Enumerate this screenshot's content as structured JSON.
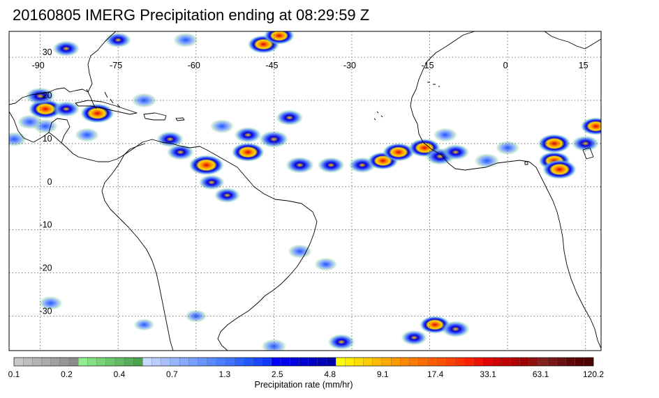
{
  "title": "20160805 IMERG Precipitation ending at 08:29:59 Z",
  "map": {
    "lon_range": [
      -96,
      18
    ],
    "lat_range": [
      -38,
      36
    ],
    "lon_ticks": [
      {
        "v": -90,
        "label": "-90"
      },
      {
        "v": -75,
        "label": "-75"
      },
      {
        "v": -60,
        "label": "-60"
      },
      {
        "v": -45,
        "label": "-45"
      },
      {
        "v": -30,
        "label": "-30"
      },
      {
        "v": -15,
        "label": "-15"
      },
      {
        "v": 0,
        "label": "0"
      },
      {
        "v": 15,
        "label": "15"
      }
    ],
    "lat_ticks": [
      {
        "v": 30,
        "label": "30"
      },
      {
        "v": 20,
        "label": "20"
      },
      {
        "v": 10,
        "label": "10"
      },
      {
        "v": 0,
        "label": "0"
      },
      {
        "v": -10,
        "label": "-10"
      },
      {
        "v": -20,
        "label": "-20"
      },
      {
        "v": -30,
        "label": "-30"
      }
    ],
    "gridline_style": "dotted",
    "coastline_color": "#000000"
  },
  "colorbar": {
    "title": "Precipitation rate (mm/hr)",
    "labels": [
      "0.1",
      "0.2",
      "0.4",
      "0.7",
      "1.3",
      "2.5",
      "4.8",
      "9.1",
      "17.4",
      "33.1",
      "63.1",
      "120.2"
    ],
    "colors": [
      "#c8c8c8",
      "#bebebe",
      "#b4b4b4",
      "#aaaaaa",
      "#a0a0a0",
      "#969696",
      "#8c8c8c",
      "#90ee90",
      "#84e084",
      "#78d278",
      "#6cc66c",
      "#62ba62",
      "#58ae58",
      "#4ea24e",
      "#c8d8ff",
      "#b8ccff",
      "#a8c0ff",
      "#98b6ff",
      "#88aaff",
      "#789eff",
      "#6894ff",
      "#5a8aff",
      "#4c7eff",
      "#3e72ff",
      "#3066ff",
      "#2258ff",
      "#1848ff",
      "#1038ff",
      "#0000ff",
      "#0000f0",
      "#0000e0",
      "#0000d0",
      "#0000c4",
      "#0000b8",
      "#0000a8",
      "#ffff00",
      "#ffee00",
      "#ffdd00",
      "#ffcc00",
      "#ffbb00",
      "#ffaa00",
      "#ff9900",
      "#ff8800",
      "#ff7a00",
      "#ff6c00",
      "#ff5e00",
      "#ff5000",
      "#ff4200",
      "#ff3300",
      "#ff2000",
      "#f01000",
      "#e00000",
      "#d00000",
      "#c00000",
      "#b00000",
      "#a00000",
      "#901010",
      "#842020",
      "#781818",
      "#6c1010",
      "#600808",
      "#580000",
      "#4c0000"
    ]
  },
  "precip_cells": [
    {
      "lon": -89,
      "lat": 18,
      "level": 0.9
    },
    {
      "lon": -79,
      "lat": 17,
      "level": 0.9
    },
    {
      "lon": -58,
      "lat": 5,
      "level": 0.95
    },
    {
      "lon": -50,
      "lat": 8,
      "level": 0.85
    },
    {
      "lon": -85,
      "lat": 18,
      "level": 0.6
    },
    {
      "lon": -65,
      "lat": 11,
      "level": 0.6
    },
    {
      "lon": -63,
      "lat": 8,
      "level": 0.6
    },
    {
      "lon": -57,
      "lat": 1,
      "level": 0.55
    },
    {
      "lon": -54,
      "lat": -2,
      "level": 0.55
    },
    {
      "lon": -45,
      "lat": 11,
      "level": 0.7
    },
    {
      "lon": -42,
      "lat": 16,
      "level": 0.6
    },
    {
      "lon": -50,
      "lat": 12,
      "level": 0.6
    },
    {
      "lon": -40,
      "lat": 5,
      "level": 0.65
    },
    {
      "lon": -34,
      "lat": 5,
      "level": 0.6
    },
    {
      "lon": -28,
      "lat": 5,
      "level": 0.6
    },
    {
      "lon": -24,
      "lat": 6,
      "level": 0.75
    },
    {
      "lon": -21,
      "lat": 8,
      "level": 0.8
    },
    {
      "lon": -16,
      "lat": 9,
      "level": 0.8
    },
    {
      "lon": -13,
      "lat": 7,
      "level": 0.7
    },
    {
      "lon": -10,
      "lat": 8,
      "level": 0.6
    },
    {
      "lon": 9,
      "lat": 10,
      "level": 0.85
    },
    {
      "lon": 9,
      "lat": 6,
      "level": 0.8
    },
    {
      "lon": 10,
      "lat": 4,
      "level": 0.9
    },
    {
      "lon": 15,
      "lat": 10,
      "level": 0.6
    },
    {
      "lon": 17,
      "lat": 14,
      "level": 0.75
    },
    {
      "lon": -85,
      "lat": 32,
      "level": 0.6
    },
    {
      "lon": -75,
      "lat": 34,
      "level": 0.55
    },
    {
      "lon": -62,
      "lat": 34,
      "level": 0.5
    },
    {
      "lon": -47,
      "lat": 33,
      "level": 0.8
    },
    {
      "lon": -44,
      "lat": 35,
      "level": 0.75
    },
    {
      "lon": -90,
      "lat": 21,
      "level": 0.7
    },
    {
      "lon": -95,
      "lat": 11,
      "level": 0.5
    },
    {
      "lon": -89,
      "lat": 14,
      "level": 0.5
    },
    {
      "lon": -81,
      "lat": 12,
      "level": 0.45
    },
    {
      "lon": -4,
      "lat": 6,
      "level": 0.5
    },
    {
      "lon": 0,
      "lat": 9,
      "level": 0.45
    },
    {
      "lon": -12,
      "lat": 12,
      "level": 0.45
    },
    {
      "lon": -14,
      "lat": -32,
      "level": 0.75
    },
    {
      "lon": -10,
      "lat": -33,
      "level": 0.65
    },
    {
      "lon": -18,
      "lat": -35,
      "level": 0.55
    },
    {
      "lon": -32,
      "lat": -36,
      "level": 0.6
    },
    {
      "lon": -45,
      "lat": -37,
      "level": 0.5
    },
    {
      "lon": -40,
      "lat": -15,
      "level": 0.45
    },
    {
      "lon": -35,
      "lat": -18,
      "level": 0.4
    },
    {
      "lon": -88,
      "lat": -27,
      "level": 0.45
    },
    {
      "lon": -70,
      "lat": -32,
      "level": 0.3
    },
    {
      "lon": -60,
      "lat": -30,
      "level": 0.35
    },
    {
      "lon": -92,
      "lat": 15,
      "level": 0.5
    },
    {
      "lon": -70,
      "lat": 20,
      "level": 0.5
    },
    {
      "lon": -55,
      "lat": 14,
      "level": 0.45
    }
  ]
}
